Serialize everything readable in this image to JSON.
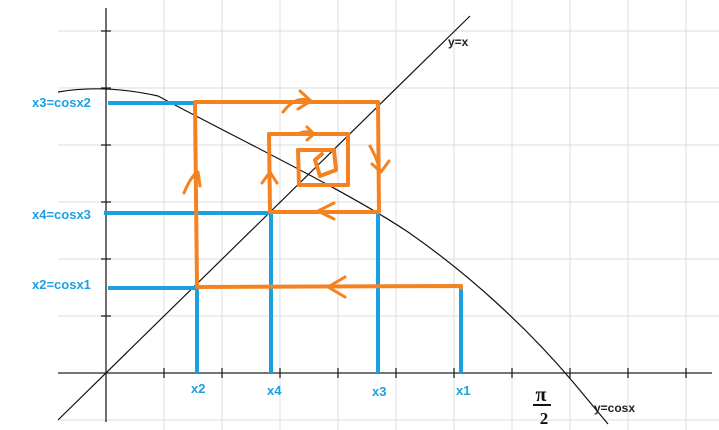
{
  "diagram": {
    "curve_labels": {
      "identity": "y=x",
      "cosine": "y=cosx"
    },
    "y_labels": [
      "x3=cosx2",
      "x4=cosx3",
      "x2=cosx1"
    ],
    "x_labels": [
      "x2",
      "x4",
      "x3",
      "x1"
    ],
    "pi_half": {
      "numerator": "π",
      "denominator": "2"
    },
    "colors": {
      "grid": "#dcdcdc",
      "axis": "#222222",
      "curve": "#111111",
      "projection": "#1ba1e2",
      "cobweb": "#f58220"
    }
  }
}
